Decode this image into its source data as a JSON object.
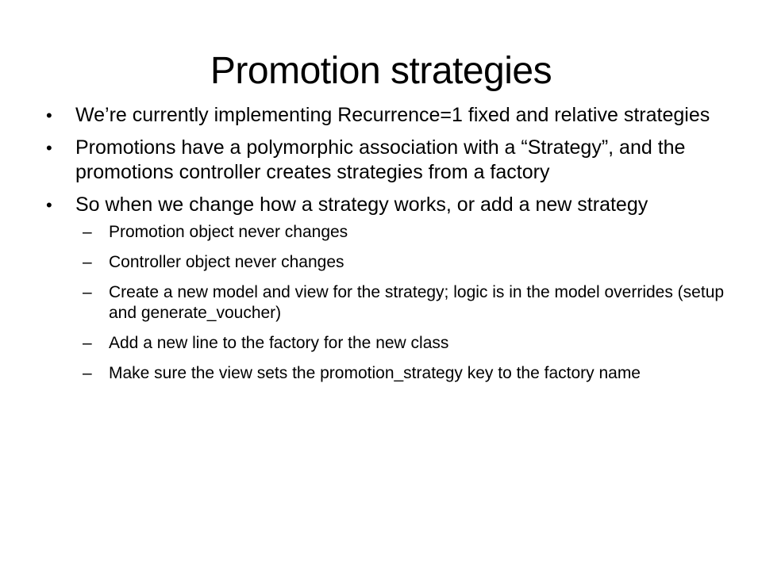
{
  "slide": {
    "title": "Promotion strategies",
    "bullets": [
      {
        "marker": "•",
        "text": "We’re currently implementing Recurrence=1 fixed and relative strategies"
      },
      {
        "marker": "•",
        "text": "Promotions have a polymorphic association with a “Strategy”, and the promotions controller creates strategies from a factory"
      },
      {
        "marker": "•",
        "text": "So when we change how a strategy works, or add a new strategy",
        "sub": [
          {
            "marker": "–",
            "text": "Promotion object never changes"
          },
          {
            "marker": "–",
            "text": "Controller object never changes"
          },
          {
            "marker": "–",
            "text": "Create a new model and view for the strategy; logic is in the model overrides (setup and generate_voucher)"
          },
          {
            "marker": "–",
            "text": "Add a new line to the factory for the new class"
          },
          {
            "marker": "–",
            "text": "Make sure the view sets the promotion_strategy key to the factory name"
          }
        ]
      }
    ]
  }
}
